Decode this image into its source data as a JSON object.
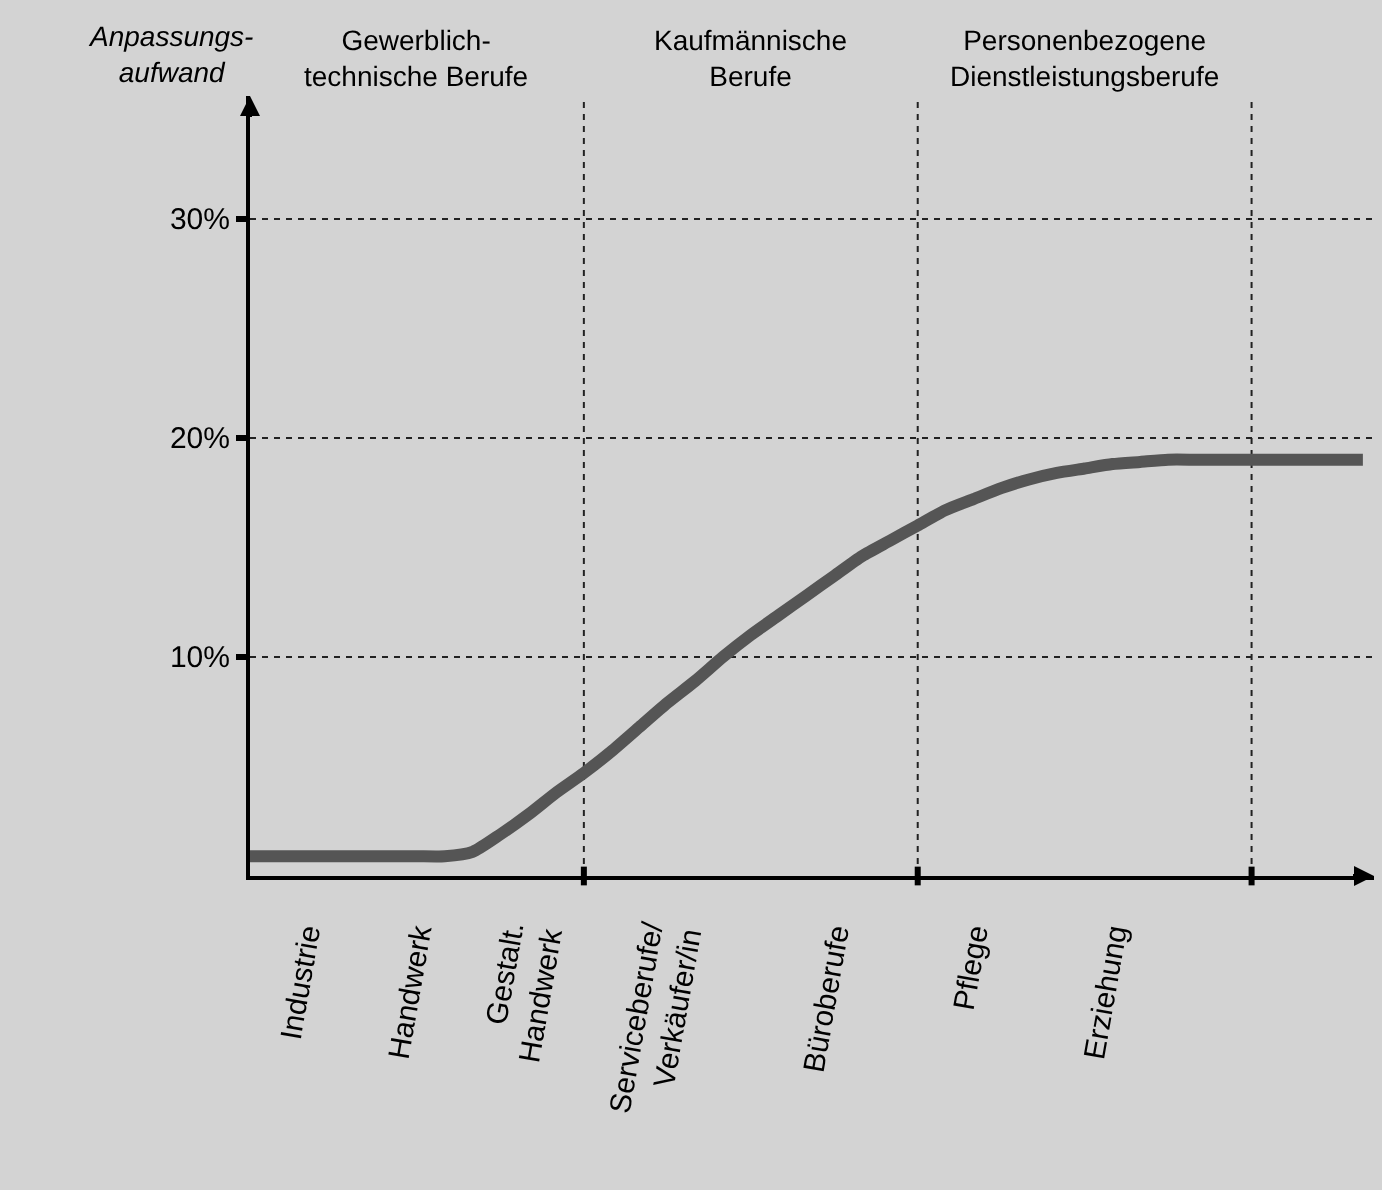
{
  "chart_data": {
    "type": "line",
    "ylabel": "Anpassungs-\naufwand",
    "annotations": [
      "Gewerblich-\ntechnische Berufe",
      "Kaufmännische\nBerufe",
      "Personenbezogene\nDienstleistungsberufe"
    ],
    "categories": [
      null,
      null,
      "Industrie",
      null,
      null,
      null,
      "Handwerk",
      null,
      null,
      null,
      "Gestalt.\nHandwerk",
      null,
      null,
      null,
      null,
      "Serviceberufe/\nVerkäufer/in",
      null,
      null,
      null,
      null,
      null,
      "Büroberufe",
      null,
      null,
      null,
      null,
      "Pflege",
      null,
      null,
      null,
      null,
      "Erziehung",
      null,
      null,
      null,
      null,
      null,
      null,
      null,
      null,
      null
    ],
    "series": [
      {
        "color": "#555555",
        "values": [
          0.9,
          0.9,
          0.9,
          0.9,
          0.9,
          0.9,
          0.9,
          0.9,
          1.1,
          1.9,
          2.8,
          3.8,
          4.7,
          5.7,
          6.8,
          7.9,
          8.9,
          10.0,
          11.0,
          11.9,
          12.8,
          13.7,
          14.6,
          15.3,
          16.0,
          16.7,
          17.2,
          17.7,
          18.1,
          18.4,
          18.6,
          18.8,
          18.9,
          19.0,
          19.0,
          19.0,
          19.0,
          19.0,
          19.0,
          19.0,
          19.0
        ]
      }
    ],
    "ylim": [
      0,
      35.6
    ],
    "yticks": [
      {
        "value": 10,
        "label": "10%"
      },
      {
        "value": 20,
        "label": "20%"
      },
      {
        "value": 30,
        "label": "30%"
      }
    ],
    "grid": "y",
    "marker": "none",
    "line_style": "solid"
  }
}
